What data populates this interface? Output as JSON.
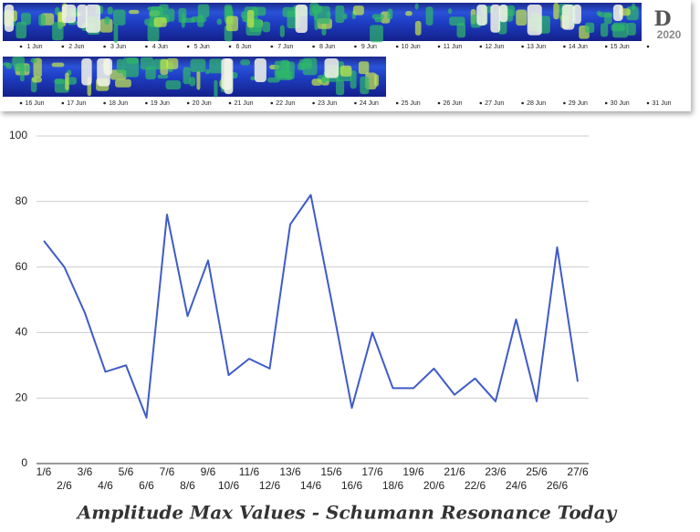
{
  "spectrogram": {
    "row1_labels": [
      "1 Jun",
      "2 Jun",
      "3 Jun",
      "4 Jun",
      "5 Jun",
      "6 Jun",
      "7 Jun",
      "8 Jun",
      "9 Jun",
      "10 Jun",
      "11 Jun",
      "12 Jun",
      "13 Jun",
      "14 Jun",
      "15 Jun"
    ],
    "row2_labels": [
      "16 Jun",
      "17 Jun",
      "18 Jun",
      "19 Jun",
      "20 Jun",
      "21 Jun",
      "22 Jun",
      "23 Jun",
      "24 Jun",
      "25 Jun",
      "26 Jun",
      "27 Jun",
      "28 Jun",
      "29 Jun",
      "30 Jun",
      "31 Jun"
    ],
    "logo_letter": "D",
    "logo_year": "2020"
  },
  "chart_data": {
    "type": "line",
    "title": "Amplitude Max Values - Schumann Resonance Today",
    "categories": [
      "1/6",
      "2/6",
      "3/6",
      "4/6",
      "5/6",
      "6/6",
      "7/6",
      "8/6",
      "9/6",
      "10/6",
      "11/6",
      "12/6",
      "13/6",
      "14/6",
      "15/6",
      "16/6",
      "17/6",
      "18/6",
      "19/6",
      "20/6",
      "21/6",
      "22/6",
      "23/6",
      "24/6",
      "25/6",
      "26/6",
      "27/6"
    ],
    "values": [
      68,
      60,
      46,
      28,
      30,
      14,
      76,
      45,
      62,
      27,
      32,
      29,
      73,
      82,
      50,
      17,
      40,
      23,
      23,
      29,
      21,
      26,
      19,
      44,
      19,
      66,
      25
    ],
    "color": "#3f5bc8",
    "ylim": [
      0,
      100
    ],
    "yticks": [
      0,
      20,
      40,
      60,
      80,
      100
    ],
    "grid": true
  }
}
